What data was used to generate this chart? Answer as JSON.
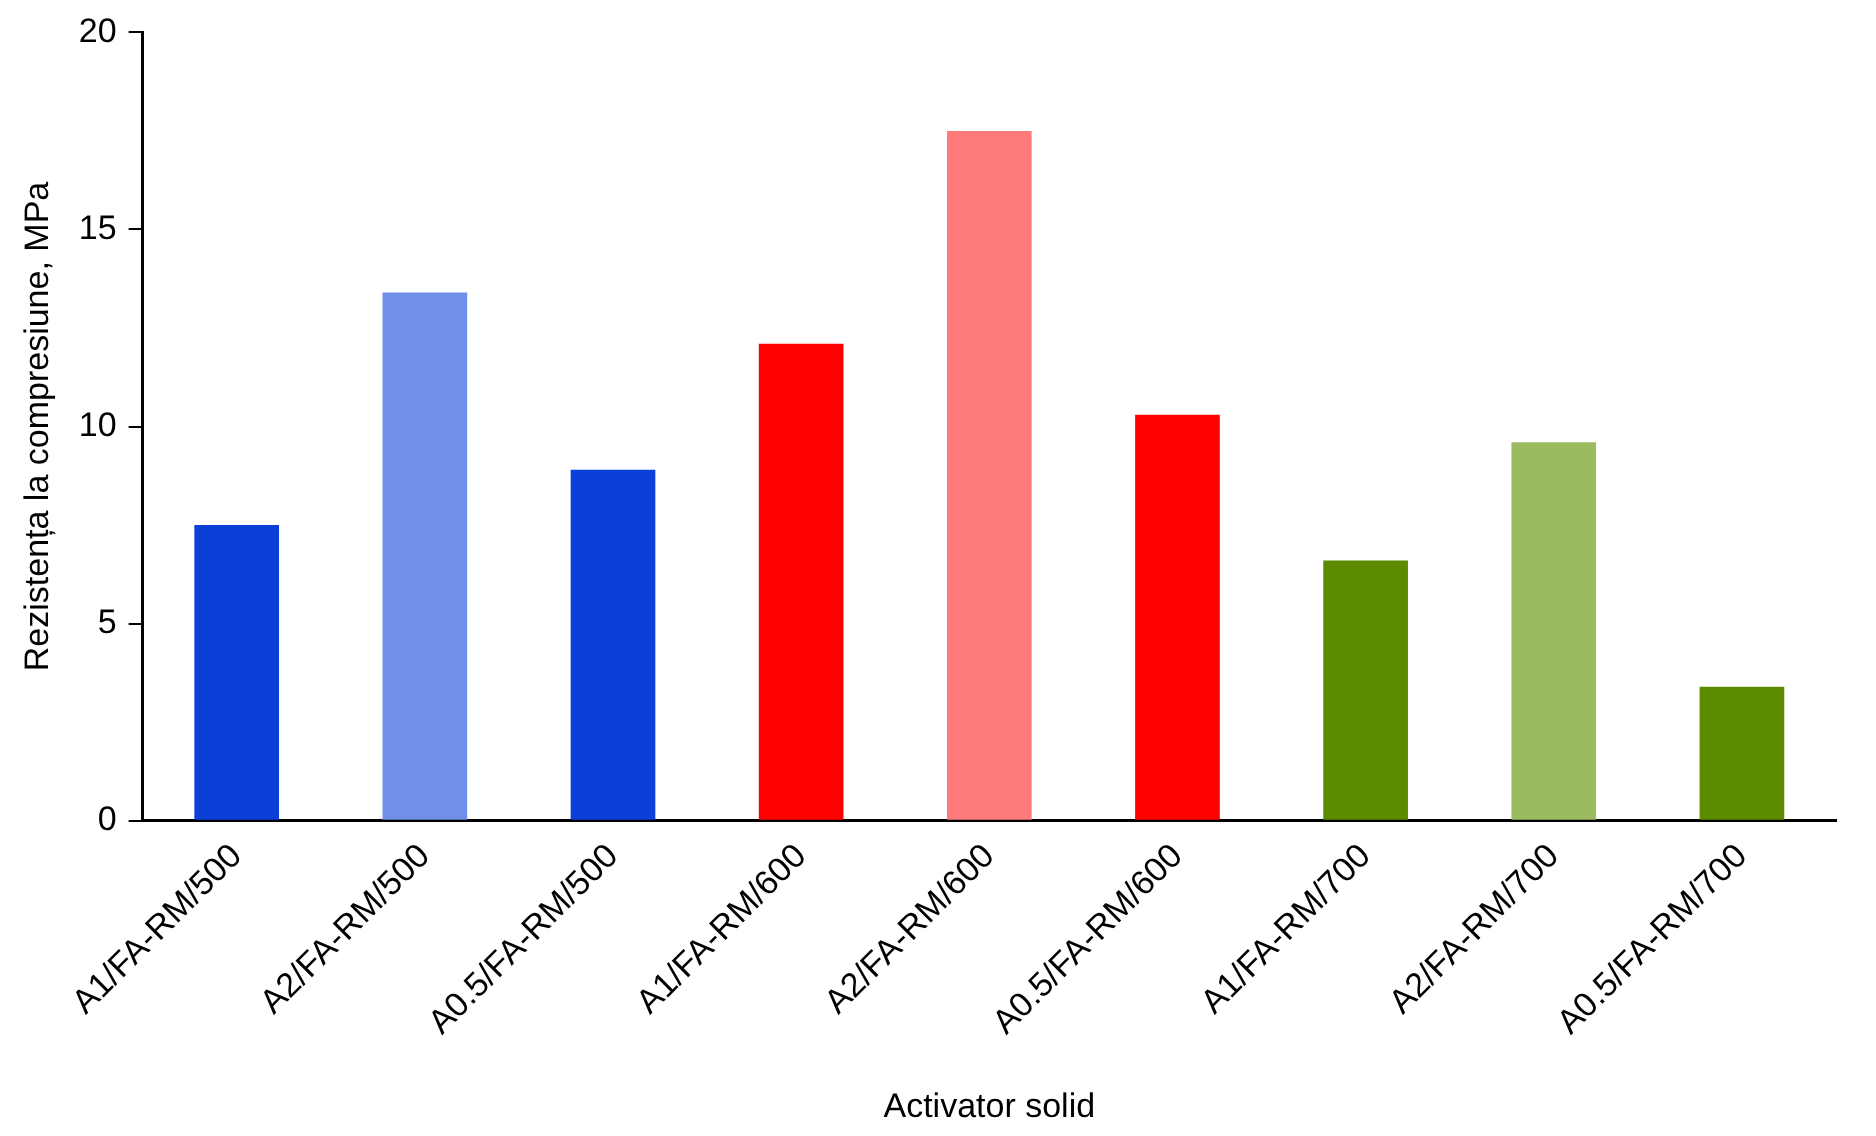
{
  "chart_data": {
    "type": "bar",
    "xlabel": "Activator solid",
    "ylabel": "Rezistența la compresiune, MPa",
    "categories": [
      "A1/FA-RM/500",
      "A2/FA-RM/500",
      "A0.5/FA-RM/500",
      "A1/FA-RM/600",
      "A2/FA-RM/600",
      "A0.5/FA-RM/600",
      "A1/FA-RM/700",
      "A2/FA-RM/700",
      "A0.5/FA-RM/700"
    ],
    "values": [
      7.5,
      13.4,
      8.9,
      12.1,
      17.5,
      10.3,
      6.6,
      9.6,
      3.4
    ],
    "colors": [
      "#0a3fd8",
      "#6f8fe8",
      "#0a3fd8",
      "#ff0000",
      "#ff7a7a",
      "#ff0000",
      "#5b8c00",
      "#9cba60",
      "#5b8c00"
    ],
    "ylim": [
      0,
      20
    ],
    "yticks": [
      0,
      5,
      10,
      15,
      20
    ],
    "grid": false,
    "legend": false
  }
}
